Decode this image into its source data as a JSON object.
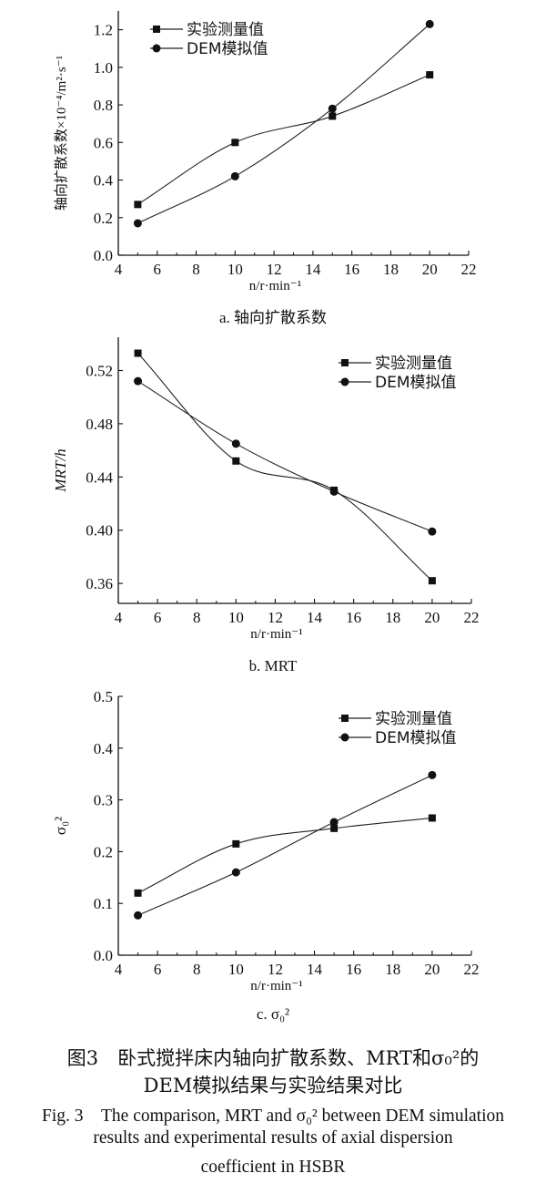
{
  "chart_data": [
    {
      "type": "line",
      "caption": "a. 轴向扩散系数",
      "xlabel": "n/r·min⁻¹",
      "ylabel": "轴向扩散系数×10⁻⁴/m²·s⁻¹",
      "xlim": [
        4,
        22
      ],
      "ylim": [
        0.0,
        1.3
      ],
      "xticks": [
        4,
        6,
        8,
        10,
        12,
        14,
        16,
        18,
        20,
        22
      ],
      "yticks": [
        0.0,
        0.2,
        0.4,
        0.6,
        0.8,
        1.0,
        1.2
      ],
      "ytick_labels": [
        "0.0",
        "0.2",
        "0.4",
        "0.6",
        "0.8",
        "1.0",
        "1.2"
      ],
      "x": [
        5,
        10,
        15,
        20
      ],
      "series": [
        {
          "name": "实验测量值",
          "marker": "square",
          "values": [
            0.27,
            0.6,
            0.74,
            0.96
          ]
        },
        {
          "name": "DEM模拟值",
          "marker": "circle",
          "values": [
            0.17,
            0.42,
            0.78,
            1.23
          ]
        }
      ],
      "grid": false,
      "legend": "top-left"
    },
    {
      "type": "line",
      "caption": "b. MRT",
      "xlabel": "n/r·min⁻¹",
      "ylabel": "MRT/h",
      "xlim": [
        4,
        22
      ],
      "ylim": [
        0.345,
        0.545
      ],
      "xticks": [
        4,
        6,
        8,
        10,
        12,
        14,
        16,
        18,
        20,
        22
      ],
      "yticks": [
        0.36,
        0.4,
        0.44,
        0.48,
        0.52
      ],
      "ytick_labels": [
        "0.36",
        "0.40",
        "0.44",
        "0.48",
        "0.52"
      ],
      "x": [
        5,
        10,
        15,
        20
      ],
      "series": [
        {
          "name": "实验测量值",
          "marker": "square",
          "values": [
            0.533,
            0.452,
            0.43,
            0.362
          ]
        },
        {
          "name": "DEM模拟值",
          "marker": "circle",
          "values": [
            0.512,
            0.465,
            0.429,
            0.399
          ]
        }
      ],
      "grid": false,
      "legend": "top-right"
    },
    {
      "type": "line",
      "caption": "c. σ₀²",
      "xlabel": "n/r·min⁻¹",
      "ylabel": "σ₀²",
      "xlim": [
        4,
        22
      ],
      "ylim": [
        0.0,
        0.5
      ],
      "xticks": [
        4,
        6,
        8,
        10,
        12,
        14,
        16,
        18,
        20,
        22
      ],
      "yticks": [
        0.0,
        0.1,
        0.2,
        0.3,
        0.4,
        0.5
      ],
      "ytick_labels": [
        "0.0",
        "0.1",
        "0.2",
        "0.3",
        "0.4",
        "0.5"
      ],
      "x": [
        5,
        10,
        15,
        20
      ],
      "series": [
        {
          "name": "实验测量值",
          "marker": "square",
          "values": [
            0.12,
            0.215,
            0.245,
            0.265
          ]
        },
        {
          "name": "DEM模拟值",
          "marker": "circle",
          "values": [
            0.077,
            0.16,
            0.257,
            0.348
          ]
        }
      ],
      "grid": false,
      "legend": "top-right"
    }
  ],
  "figure_caption": {
    "zh_line1": "图3　卧式搅拌床内轴向扩散系数、MRT和σ₀²的",
    "zh_line2": "DEM模拟结果与实验结果对比",
    "en_line1": "Fig. 3　The comparison, MRT and σ₀² between DEM simulation",
    "en_line2": "results and experimental results of axial dispersion",
    "en_line3": "coefficient in HSBR"
  }
}
